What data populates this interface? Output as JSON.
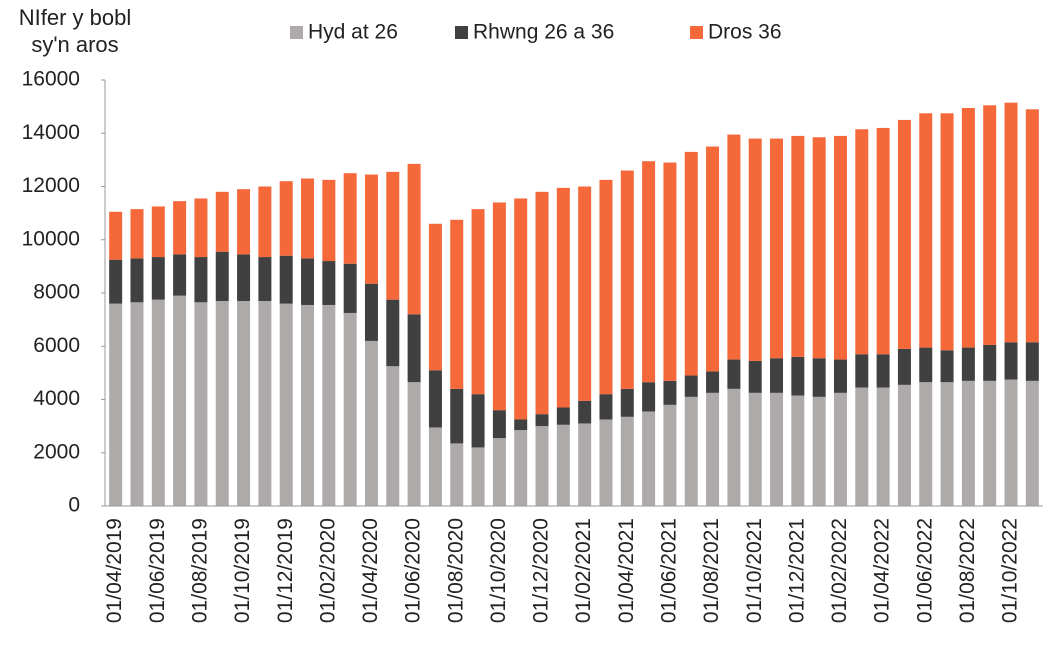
{
  "chart_data": {
    "type": "stacked_bar",
    "y_label": "NIfer y bobl sy'n aros",
    "categories": [
      "01/04/2019",
      null,
      "01/06/2019",
      null,
      "01/08/2019",
      null,
      "01/10/2019",
      null,
      "01/12/2019",
      null,
      "01/02/2020",
      null,
      "01/04/2020",
      null,
      "01/06/2020",
      null,
      "01/08/2020",
      null,
      "01/10/2020",
      null,
      "01/12/2020",
      null,
      "01/02/2021",
      null,
      "01/04/2021",
      null,
      "01/06/2021",
      null,
      "01/08/2021",
      null,
      "01/10/2021",
      null,
      "01/12/2021",
      null,
      "01/02/2022",
      null,
      "01/04/2022",
      null,
      "01/06/2022",
      null,
      "01/08/2022",
      null,
      "01/10/2022",
      null
    ],
    "series": [
      {
        "name": "Hyd at 26",
        "color": "#aeaaaa",
        "values": [
          7600,
          7650,
          7750,
          7900,
          7650,
          7700,
          7700,
          7700,
          7600,
          7550,
          7550,
          7250,
          6200,
          5250,
          4650,
          2950,
          2350,
          2200,
          2550,
          2850,
          3000,
          3050,
          3100,
          3250,
          3350,
          3550,
          3800,
          4100,
          4250,
          4400,
          4250,
          4250,
          4150,
          4100,
          4250,
          4450,
          4450,
          4550,
          4650,
          4650,
          4700,
          4700,
          4750,
          4700
        ]
      },
      {
        "name": "Rhwng 26 a 36",
        "color": "#404040",
        "values": [
          1650,
          1650,
          1600,
          1550,
          1700,
          1850,
          1750,
          1650,
          1800,
          1750,
          1650,
          1850,
          2150,
          2500,
          2550,
          2150,
          2050,
          2000,
          1050,
          400,
          450,
          650,
          850,
          950,
          1050,
          1100,
          900,
          800,
          800,
          1100,
          1200,
          1300,
          1450,
          1450,
          1250,
          1250,
          1250,
          1350,
          1300,
          1200,
          1250,
          1350,
          1400,
          1450
        ]
      },
      {
        "name": "Dros 36",
        "color": "#f4683a",
        "values": [
          1800,
          1850,
          1900,
          2000,
          2200,
          2250,
          2450,
          2650,
          2800,
          3000,
          3050,
          3400,
          4100,
          4800,
          5650,
          5500,
          6350,
          6950,
          7800,
          8300,
          8350,
          8250,
          8050,
          8050,
          8200,
          8300,
          8200,
          8400,
          8450,
          8450,
          8350,
          8250,
          8300,
          8300,
          8400,
          8450,
          8500,
          8600,
          8800,
          8900,
          9000,
          9000,
          9000,
          8750
        ]
      }
    ],
    "ylim": [
      0,
      16000
    ],
    "yticks": [
      0,
      2000,
      4000,
      6000,
      8000,
      10000,
      12000,
      14000,
      16000
    ],
    "legend": "top"
  }
}
